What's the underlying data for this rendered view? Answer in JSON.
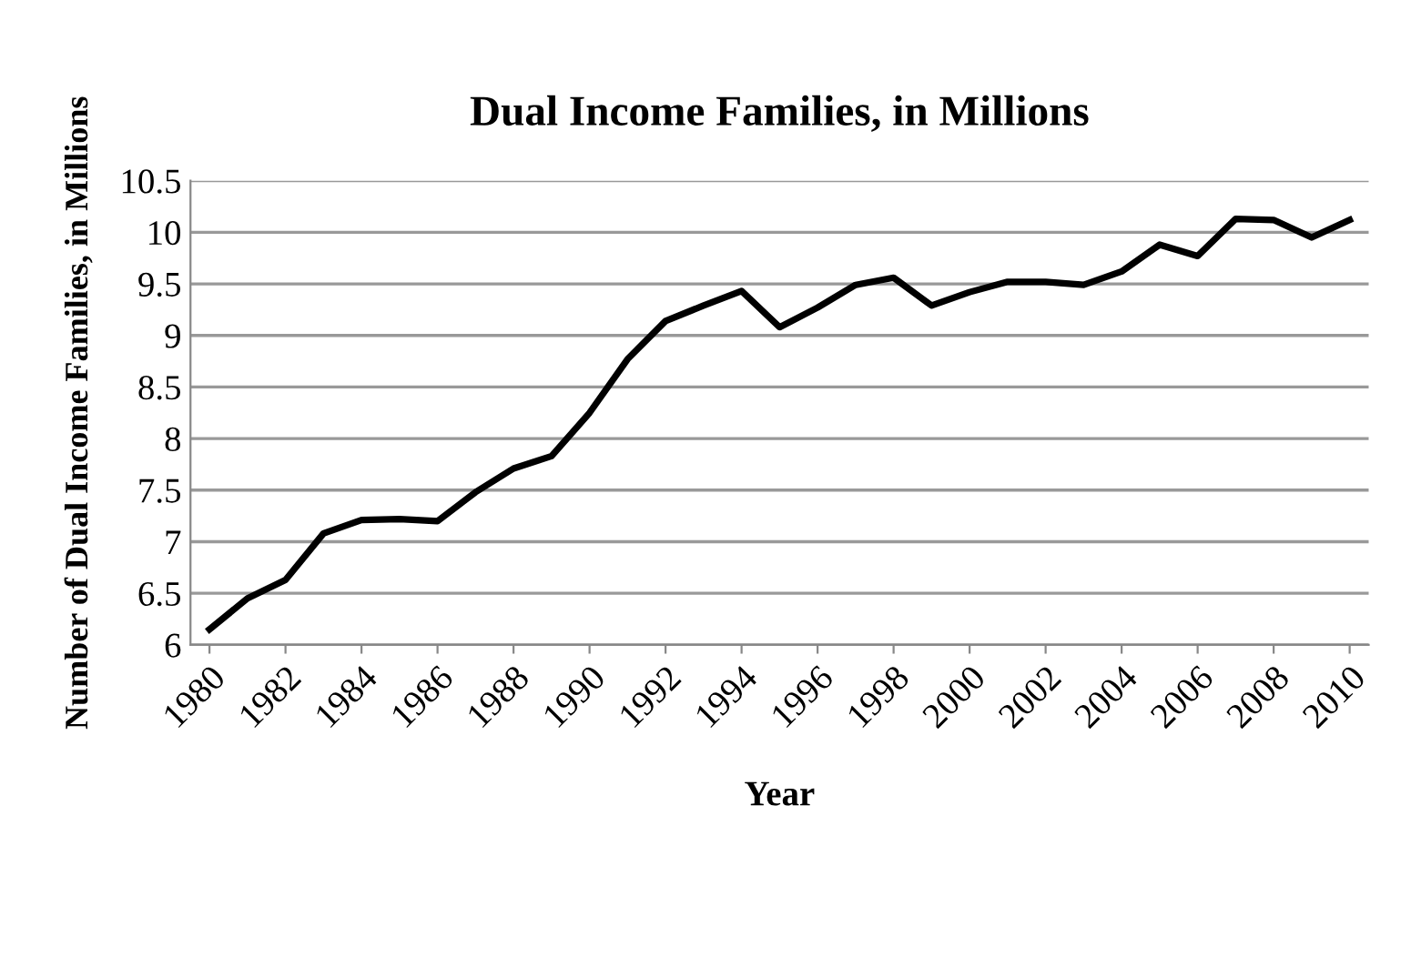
{
  "chart_data": {
    "type": "line",
    "title": "Dual Income Families, in Millions",
    "xlabel": "Year",
    "ylabel": "Number of Dual Income Families, in Millions",
    "categories": [
      "1980",
      null,
      "1982",
      null,
      "1984",
      null,
      "1986",
      null,
      "1988",
      null,
      "1990",
      null,
      "1992",
      null,
      "1994",
      null,
      "1996",
      null,
      "1998",
      null,
      "2000",
      null,
      "2002",
      null,
      "2004",
      null,
      "2006",
      null,
      "2008",
      null,
      "2010"
    ],
    "series": [
      {
        "color": "#000000",
        "values": [
          6.15,
          6.45,
          6.63,
          7.08,
          7.21,
          7.22,
          7.2,
          7.48,
          7.71,
          7.83,
          8.25,
          8.77,
          9.14,
          9.29,
          9.43,
          9.08,
          9.27,
          9.49,
          9.56,
          9.29,
          9.42,
          9.52,
          9.52,
          9.49,
          9.62,
          9.88,
          9.77,
          10.13,
          10.12,
          9.95,
          10.12
        ]
      }
    ],
    "ylim": [
      6,
      10.5
    ],
    "yticks": [
      6,
      6.5,
      7,
      7.5,
      8,
      8.5,
      9,
      9.5,
      10,
      10.5
    ],
    "grid": "y",
    "legend": false,
    "marker": "none",
    "line_style": "solid"
  }
}
